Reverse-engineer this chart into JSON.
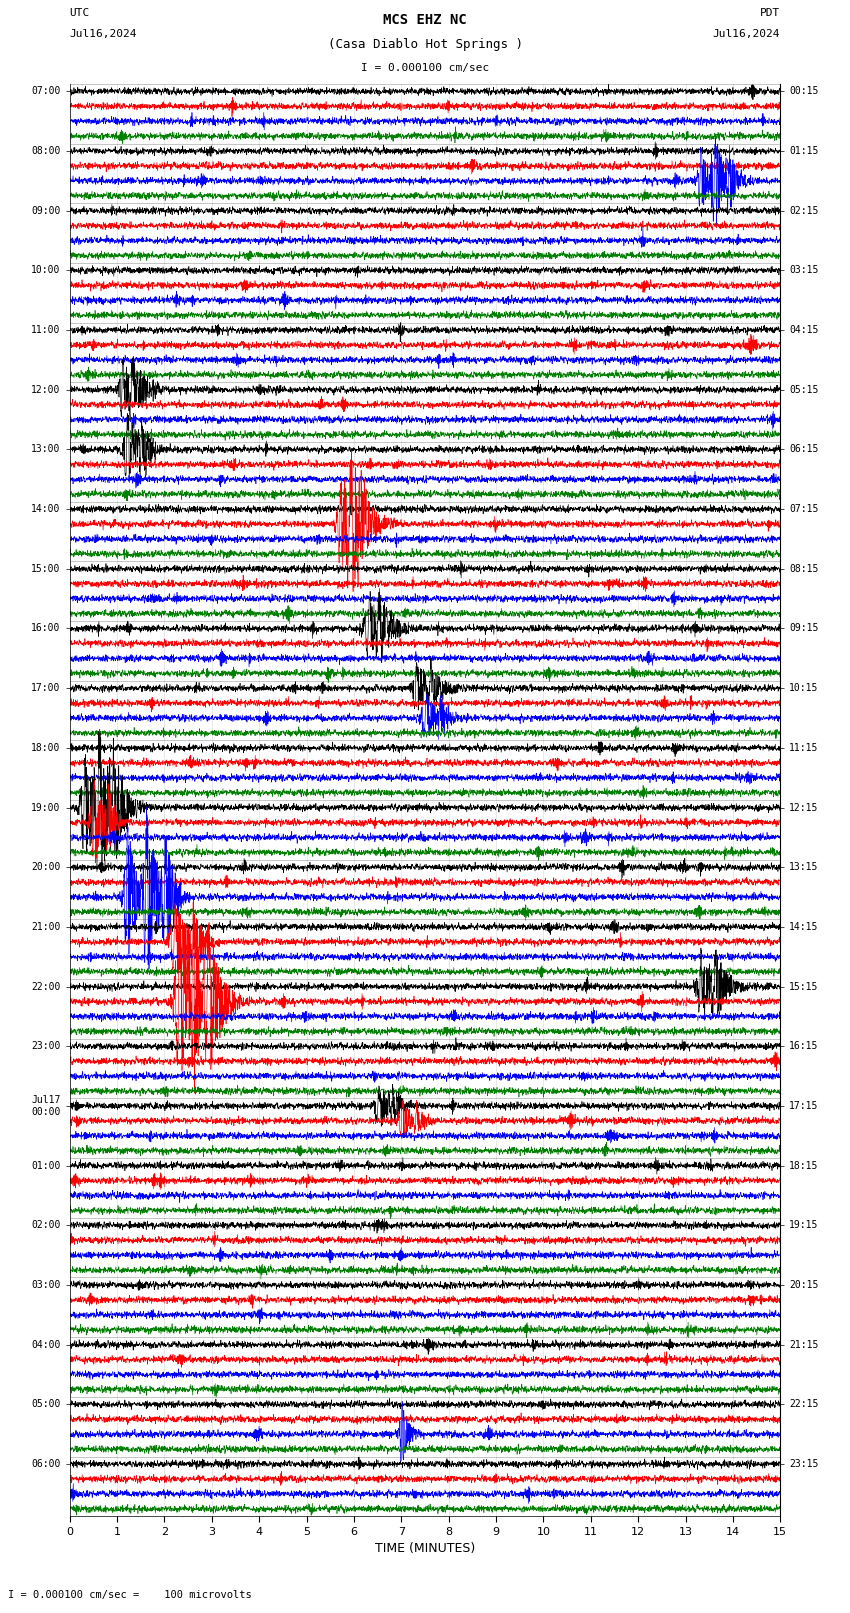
{
  "title_line1": "MCS EHZ NC",
  "title_line2": "(Casa Diablo Hot Springs )",
  "scale_text": "I = 0.000100 cm/sec",
  "footer_text": "I = 0.000100 cm/sec =    100 microvolts",
  "utc_label": "UTC",
  "utc_date": "Jul16,2024",
  "pdt_label": "PDT",
  "pdt_date": "Jul16,2024",
  "xlabel": "TIME (MINUTES)",
  "left_times": [
    "07:00",
    "08:00",
    "09:00",
    "10:00",
    "11:00",
    "12:00",
    "13:00",
    "14:00",
    "15:00",
    "16:00",
    "17:00",
    "18:00",
    "19:00",
    "20:00",
    "21:00",
    "22:00",
    "23:00",
    "Jul17\n00:00",
    "01:00",
    "02:00",
    "03:00",
    "04:00",
    "05:00",
    "06:00"
  ],
  "right_times": [
    "00:15",
    "01:15",
    "02:15",
    "03:15",
    "04:15",
    "05:15",
    "06:15",
    "07:15",
    "08:15",
    "09:15",
    "10:15",
    "11:15",
    "12:15",
    "13:15",
    "14:15",
    "15:15",
    "16:15",
    "17:15",
    "18:15",
    "19:15",
    "20:15",
    "21:15",
    "22:15",
    "23:15"
  ],
  "n_rows": 24,
  "n_traces_per_row": 4,
  "colors": [
    "black",
    "red",
    "blue",
    "green"
  ],
  "x_min": 0,
  "x_max": 15,
  "background_color": "white",
  "seed": 42,
  "n_points": 3000,
  "base_amplitude": 0.35,
  "spike_events": {
    "1_2": {
      "x": [
        13.3,
        13.6,
        13.9
      ],
      "amp": [
        5,
        8,
        4
      ]
    },
    "5_0": {
      "x": [
        1.1,
        1.3
      ],
      "amp": [
        6,
        5
      ]
    },
    "6_0": {
      "x": [
        1.2,
        1.5
      ],
      "amp": [
        8,
        6
      ]
    },
    "7_1": {
      "x": [
        5.7,
        5.9,
        6.1
      ],
      "amp": [
        9,
        12,
        8
      ]
    },
    "9_0": {
      "x": [
        6.3,
        6.5
      ],
      "amp": [
        5,
        4
      ]
    },
    "10_0": {
      "x": [
        7.3,
        7.6
      ],
      "amp": [
        6,
        5
      ]
    },
    "10_2": {
      "x": [
        7.5,
        7.8
      ],
      "amp": [
        5,
        4
      ]
    },
    "12_0": {
      "x": [
        0.3,
        0.6,
        0.9
      ],
      "amp": [
        8,
        10,
        7
      ]
    },
    "12_1": {
      "x": [
        0.5,
        0.8
      ],
      "amp": [
        10,
        8
      ]
    },
    "13_2": {
      "x": [
        1.2,
        1.6,
        2.0
      ],
      "amp": [
        12,
        14,
        10
      ]
    },
    "14_1": {
      "x": [
        2.2,
        2.6
      ],
      "amp": [
        8,
        7
      ]
    },
    "15_0": {
      "x": [
        13.3,
        13.6
      ],
      "amp": [
        6,
        5
      ]
    },
    "15_1": {
      "x": [
        2.3,
        2.6,
        2.9
      ],
      "amp": [
        14,
        16,
        12
      ]
    },
    "17_0": {
      "x": [
        6.5,
        6.8
      ],
      "amp": [
        4,
        3
      ]
    },
    "17_1": {
      "x": [
        7.0,
        7.3
      ],
      "amp": [
        4,
        3
      ]
    },
    "22_2": {
      "x": [
        7.0
      ],
      "amp": [
        5
      ]
    }
  }
}
